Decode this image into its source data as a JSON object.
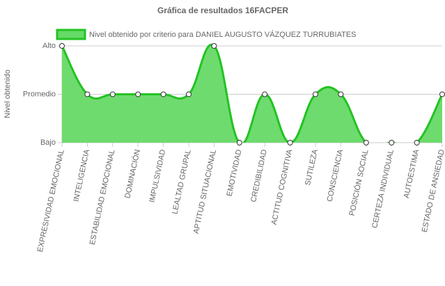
{
  "chart_data": {
    "type": "line",
    "title": "Gráfica de resultados 16FACPER",
    "y_label": "Nivel obtenido",
    "categories": [
      "EXPRESIVIDAD EMOCIONAL",
      "INTELIGENCIA",
      "ESTABILIDAD EMOCIONAL",
      "DOMINACIÓN",
      "IMPULSIVIDAD",
      "LEALTAD GRUPAL",
      "APTITUD SITUACIONAL",
      "EMOTIVIDAD",
      "CREDIBILIDAD",
      "ACTITUD COGNITIVA",
      "SUTILEZA",
      "CONSCIENCIA",
      "POSICIÓN SOCIAL",
      "CERTEZA INDIVIDUAL",
      "AUTOESTIMA",
      "ESTADO DE ANSIEDAD"
    ],
    "series": [
      {
        "name": "Nivel obtenido por criterio para DANIEL AUGUSTO VÁZQUEZ TURRUBIATES",
        "color": "#22c322",
        "fill": "#66d966",
        "values": [
          2,
          1,
          1,
          1,
          1,
          1,
          2,
          0,
          1,
          0,
          1,
          1,
          0,
          0,
          0,
          1
        ]
      }
    ],
    "ylim": [
      0,
      2
    ],
    "yticks": [
      {
        "value": 0,
        "label": "Bajo"
      },
      {
        "value": 1,
        "label": "Promedio"
      },
      {
        "value": 2,
        "label": "Alto"
      }
    ],
    "grid": true
  }
}
